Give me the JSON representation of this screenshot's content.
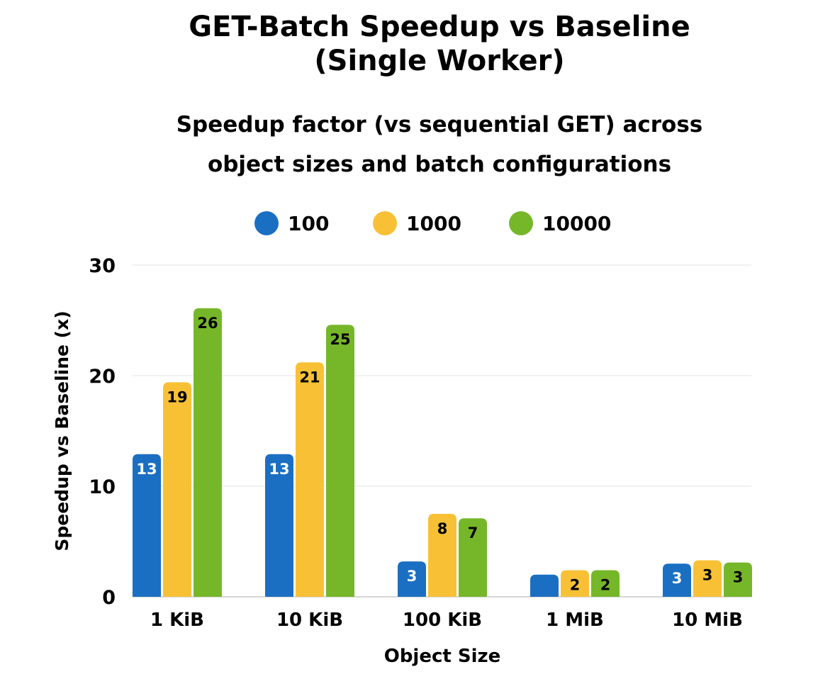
{
  "chart_data": {
    "type": "bar",
    "title": "GET-Batch Speedup vs Baseline (Single Worker)",
    "title_lines": [
      "GET-Batch Speedup vs Baseline",
      "(Single Worker)"
    ],
    "subtitle": "Speedup factor (vs sequential GET) across object sizes and batch configurations",
    "subtitle_lines": [
      "Speedup factor (vs sequential GET) across",
      "object sizes and batch configurations"
    ],
    "xlabel": "Object Size",
    "ylabel": "Speedup vs Baseline (x)",
    "categories": [
      "1 KiB",
      "10 KiB",
      "100 KiB",
      "1 MiB",
      "10 MiB"
    ],
    "ylim": [
      0,
      30
    ],
    "yticks": [
      0,
      10,
      20,
      30
    ],
    "grid": true,
    "legend_position": "top",
    "series": [
      {
        "name": "100",
        "color": "#1b6fc2",
        "values": [
          12.9,
          12.9,
          3.2,
          2.0,
          3.0
        ],
        "labels": [
          "13",
          "13",
          "3",
          "",
          "3"
        ],
        "label_color": "#ffffff"
      },
      {
        "name": "1000",
        "color": "#f8c135",
        "values": [
          19.4,
          21.2,
          7.5,
          2.4,
          3.3
        ],
        "labels": [
          "19",
          "21",
          "8",
          "2",
          "3"
        ],
        "label_color": "#000000"
      },
      {
        "name": "10000",
        "color": "#76b72a",
        "values": [
          26.1,
          24.6,
          7.1,
          2.4,
          3.1
        ],
        "labels": [
          "26",
          "25",
          "7",
          "2",
          "3"
        ],
        "label_color": "#000000"
      }
    ]
  }
}
